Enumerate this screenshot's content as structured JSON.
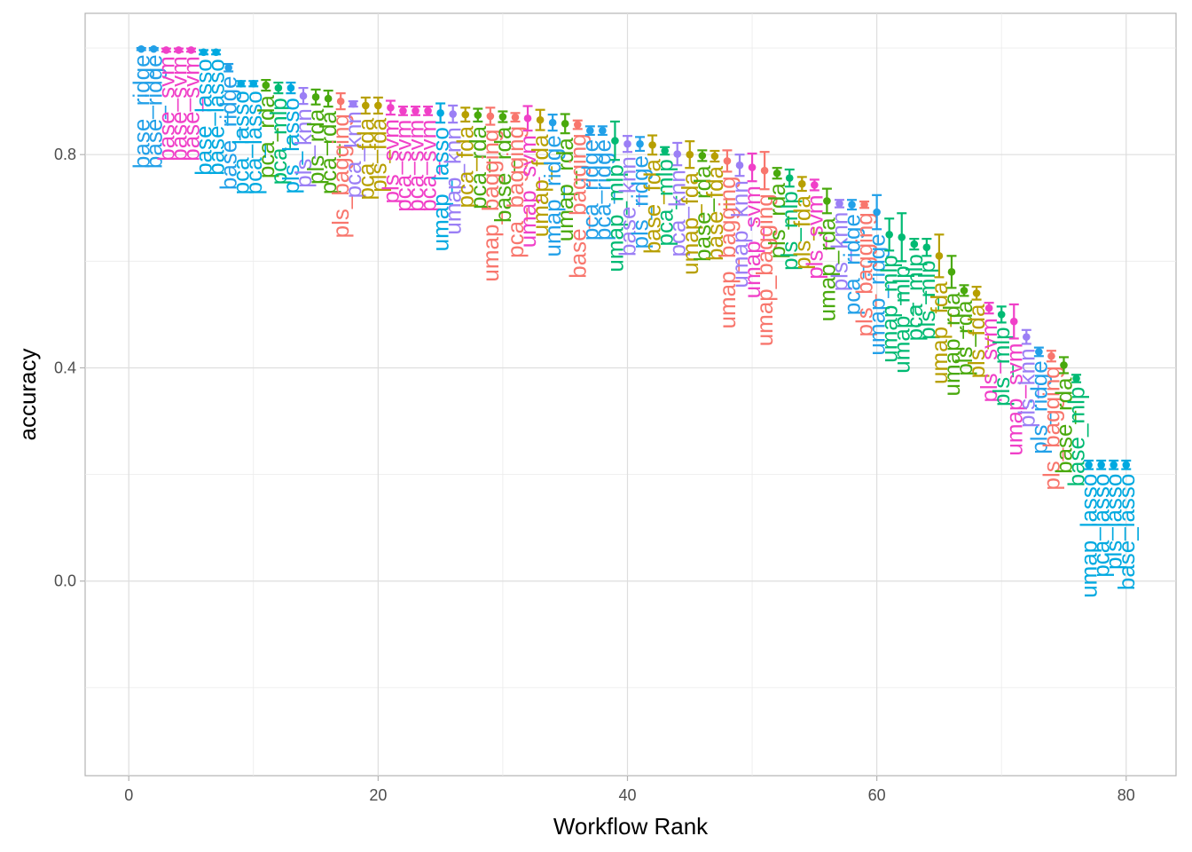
{
  "chart_data": {
    "type": "scatter",
    "xlabel": "Workflow Rank",
    "ylabel": "accuracy",
    "xlim": [
      -3.5,
      84
    ],
    "ylim": [
      -0.365,
      1.065
    ],
    "x_ticks": [
      0,
      20,
      40,
      60,
      80
    ],
    "x_tick_labels": [
      "0",
      "20",
      "40",
      "60",
      "80"
    ],
    "y_ticks": [
      0.0,
      0.4,
      0.8
    ],
    "y_tick_labels": [
      "0.0",
      "0.4",
      "0.8"
    ],
    "grid": true,
    "theme": "light",
    "legend": "none",
    "colors": {
      "bagging": "#F8766D",
      "fda": "#B79F00",
      "lasso": "#00A9E0",
      "knn": "#9B7FF5",
      "mlp": "#00BA73",
      "rda": "#49A90D",
      "ridge": "#22A0E8",
      "svm": "#F040C8"
    },
    "points": [
      {
        "rank": 1,
        "label": "base_ridge",
        "model": "ridge",
        "mean": 0.998,
        "lower": 0.996,
        "upper": 1.0
      },
      {
        "rank": 2,
        "label": "base_ridge",
        "model": "ridge",
        "mean": 0.998,
        "lower": 0.996,
        "upper": 1.0
      },
      {
        "rank": 3,
        "label": "base_svm",
        "model": "svm",
        "mean": 0.996,
        "lower": 0.993,
        "upper": 0.999
      },
      {
        "rank": 4,
        "label": "base_svm",
        "model": "svm",
        "mean": 0.996,
        "lower": 0.993,
        "upper": 0.999
      },
      {
        "rank": 5,
        "label": "base_svm",
        "model": "svm",
        "mean": 0.996,
        "lower": 0.993,
        "upper": 0.999
      },
      {
        "rank": 6,
        "label": "base_lasso",
        "model": "lasso",
        "mean": 0.992,
        "lower": 0.988,
        "upper": 0.996
      },
      {
        "rank": 7,
        "label": "base_lasso",
        "model": "lasso",
        "mean": 0.992,
        "lower": 0.988,
        "upper": 0.996
      },
      {
        "rank": 8,
        "label": "base_ridge",
        "model": "ridge",
        "mean": 0.963,
        "lower": 0.956,
        "upper": 0.97
      },
      {
        "rank": 9,
        "label": "pca_lasso",
        "model": "lasso",
        "mean": 0.933,
        "lower": 0.928,
        "upper": 0.938
      },
      {
        "rank": 10,
        "label": "pca_lasso",
        "model": "lasso",
        "mean": 0.933,
        "lower": 0.928,
        "upper": 0.938
      },
      {
        "rank": 11,
        "label": "pca_rda",
        "model": "rda",
        "mean": 0.93,
        "lower": 0.92,
        "upper": 0.94
      },
      {
        "rank": 12,
        "label": "pca_mlp",
        "model": "mlp",
        "mean": 0.925,
        "lower": 0.915,
        "upper": 0.935
      },
      {
        "rank": 13,
        "label": "pls_lasso",
        "model": "lasso",
        "mean": 0.925,
        "lower": 0.915,
        "upper": 0.935
      },
      {
        "rank": 14,
        "label": "pls_knn",
        "model": "knn",
        "mean": 0.91,
        "lower": 0.895,
        "upper": 0.925
      },
      {
        "rank": 15,
        "label": "pls_rda",
        "model": "rda",
        "mean": 0.908,
        "lower": 0.894,
        "upper": 0.922
      },
      {
        "rank": 16,
        "label": "pca_rda",
        "model": "rda",
        "mean": 0.905,
        "lower": 0.89,
        "upper": 0.92
      },
      {
        "rank": 17,
        "label": "pls_bagging",
        "model": "bagging",
        "mean": 0.9,
        "lower": 0.885,
        "upper": 0.915
      },
      {
        "rank": 18,
        "label": "pca_knn",
        "model": "knn",
        "mean": 0.895,
        "lower": 0.89,
        "upper": 0.9
      },
      {
        "rank": 19,
        "label": "pca_fda",
        "model": "fda",
        "mean": 0.892,
        "lower": 0.877,
        "upper": 0.907
      },
      {
        "rank": 20,
        "label": "pls_fda",
        "model": "fda",
        "mean": 0.892,
        "lower": 0.877,
        "upper": 0.907
      },
      {
        "rank": 21,
        "label": "pls_svm",
        "model": "svm",
        "mean": 0.888,
        "lower": 0.875,
        "upper": 0.901
      },
      {
        "rank": 22,
        "label": "pca_svm",
        "model": "svm",
        "mean": 0.882,
        "lower": 0.874,
        "upper": 0.89
      },
      {
        "rank": 23,
        "label": "pca_svm",
        "model": "svm",
        "mean": 0.882,
        "lower": 0.874,
        "upper": 0.89
      },
      {
        "rank": 24,
        "label": "pca_svm",
        "model": "svm",
        "mean": 0.882,
        "lower": 0.874,
        "upper": 0.89
      },
      {
        "rank": 25,
        "label": "umap_lasso",
        "model": "lasso",
        "mean": 0.878,
        "lower": 0.86,
        "upper": 0.896
      },
      {
        "rank": 26,
        "label": "umap_knn",
        "model": "knn",
        "mean": 0.876,
        "lower": 0.86,
        "upper": 0.892
      },
      {
        "rank": 27,
        "label": "pca_fda",
        "model": "fda",
        "mean": 0.875,
        "lower": 0.862,
        "upper": 0.888
      },
      {
        "rank": 28,
        "label": "pca_rda",
        "model": "rda",
        "mean": 0.874,
        "lower": 0.862,
        "upper": 0.886
      },
      {
        "rank": 29,
        "label": "umap_bagging",
        "model": "bagging",
        "mean": 0.872,
        "lower": 0.856,
        "upper": 0.888
      },
      {
        "rank": 30,
        "label": "base_rda",
        "model": "rda",
        "mean": 0.871,
        "lower": 0.861,
        "upper": 0.881
      },
      {
        "rank": 31,
        "label": "pca_bagging",
        "model": "bagging",
        "mean": 0.87,
        "lower": 0.862,
        "upper": 0.878
      },
      {
        "rank": 32,
        "label": "umap_svm",
        "model": "svm",
        "mean": 0.868,
        "lower": 0.845,
        "upper": 0.891
      },
      {
        "rank": 33,
        "label": "umap_fda",
        "model": "fda",
        "mean": 0.865,
        "lower": 0.846,
        "upper": 0.884
      },
      {
        "rank": 34,
        "label": "umap_ridge",
        "model": "ridge",
        "mean": 0.86,
        "lower": 0.845,
        "upper": 0.875
      },
      {
        "rank": 35,
        "label": "umap_rda",
        "model": "rda",
        "mean": 0.858,
        "lower": 0.84,
        "upper": 0.876
      },
      {
        "rank": 36,
        "label": "base_bagging",
        "model": "bagging",
        "mean": 0.856,
        "lower": 0.848,
        "upper": 0.864
      },
      {
        "rank": 37,
        "label": "pca_ridge",
        "model": "ridge",
        "mean": 0.845,
        "lower": 0.837,
        "upper": 0.853
      },
      {
        "rank": 38,
        "label": "pca_ridge",
        "model": "ridge",
        "mean": 0.845,
        "lower": 0.837,
        "upper": 0.853
      },
      {
        "rank": 39,
        "label": "umap_mlp",
        "model": "mlp",
        "mean": 0.826,
        "lower": 0.79,
        "upper": 0.862
      },
      {
        "rank": 40,
        "label": "base_knn",
        "model": "knn",
        "mean": 0.82,
        "lower": 0.805,
        "upper": 0.835
      },
      {
        "rank": 41,
        "label": "pls_ridge",
        "model": "ridge",
        "mean": 0.82,
        "lower": 0.807,
        "upper": 0.833
      },
      {
        "rank": 42,
        "label": "base_fda",
        "model": "fda",
        "mean": 0.818,
        "lower": 0.8,
        "upper": 0.836
      },
      {
        "rank": 43,
        "label": "pca_mlp",
        "model": "mlp",
        "mean": 0.807,
        "lower": 0.8,
        "upper": 0.814
      },
      {
        "rank": 44,
        "label": "pca_knn",
        "model": "knn",
        "mean": 0.801,
        "lower": 0.78,
        "upper": 0.822
      },
      {
        "rank": 45,
        "label": "umap_fda",
        "model": "fda",
        "mean": 0.8,
        "lower": 0.775,
        "upper": 0.825
      },
      {
        "rank": 46,
        "label": "base_rda",
        "model": "rda",
        "mean": 0.798,
        "lower": 0.788,
        "upper": 0.808
      },
      {
        "rank": 47,
        "label": "base_fda",
        "model": "fda",
        "mean": 0.797,
        "lower": 0.787,
        "upper": 0.807
      },
      {
        "rank": 48,
        "label": "umap_bagging",
        "model": "bagging",
        "mean": 0.788,
        "lower": 0.768,
        "upper": 0.808
      },
      {
        "rank": 49,
        "label": "umap_knn",
        "model": "knn",
        "mean": 0.78,
        "lower": 0.76,
        "upper": 0.8
      },
      {
        "rank": 50,
        "label": "umap_svm",
        "model": "svm",
        "mean": 0.776,
        "lower": 0.75,
        "upper": 0.802
      },
      {
        "rank": 51,
        "label": "umap_bagging",
        "model": "bagging",
        "mean": 0.77,
        "lower": 0.735,
        "upper": 0.805
      },
      {
        "rank": 52,
        "label": "pls_rda",
        "model": "rda",
        "mean": 0.765,
        "lower": 0.755,
        "upper": 0.775
      },
      {
        "rank": 53,
        "label": "pls_mlp",
        "model": "mlp",
        "mean": 0.756,
        "lower": 0.74,
        "upper": 0.772
      },
      {
        "rank": 54,
        "label": "pls_fda",
        "model": "fda",
        "mean": 0.745,
        "lower": 0.732,
        "upper": 0.758
      },
      {
        "rank": 55,
        "label": "pls_svm",
        "model": "svm",
        "mean": 0.743,
        "lower": 0.733,
        "upper": 0.753
      },
      {
        "rank": 56,
        "label": "umap_rda",
        "model": "rda",
        "mean": 0.713,
        "lower": 0.69,
        "upper": 0.736
      },
      {
        "rank": 57,
        "label": "pls_knn",
        "model": "knn",
        "mean": 0.708,
        "lower": 0.701,
        "upper": 0.715
      },
      {
        "rank": 58,
        "label": "pca_ridge",
        "model": "ridge",
        "mean": 0.706,
        "lower": 0.697,
        "upper": 0.715
      },
      {
        "rank": 59,
        "label": "pls_bagging",
        "model": "bagging",
        "mean": 0.706,
        "lower": 0.7,
        "upper": 0.712
      },
      {
        "rank": 60,
        "label": "umap_ridge",
        "model": "ridge",
        "mean": 0.692,
        "lower": 0.66,
        "upper": 0.724
      },
      {
        "rank": 61,
        "label": "umap_mlp",
        "model": "mlp",
        "mean": 0.65,
        "lower": 0.62,
        "upper": 0.68
      },
      {
        "rank": 62,
        "label": "umap_mlp",
        "model": "mlp",
        "mean": 0.645,
        "lower": 0.6,
        "upper": 0.69
      },
      {
        "rank": 63,
        "label": "pca_mlp",
        "model": "mlp",
        "mean": 0.632,
        "lower": 0.622,
        "upper": 0.642
      },
      {
        "rank": 64,
        "label": "pls_mlp",
        "model": "mlp",
        "mean": 0.626,
        "lower": 0.61,
        "upper": 0.642
      },
      {
        "rank": 65,
        "label": "umap_fda",
        "model": "fda",
        "mean": 0.61,
        "lower": 0.57,
        "upper": 0.65
      },
      {
        "rank": 66,
        "label": "umap_rda",
        "model": "rda",
        "mean": 0.58,
        "lower": 0.55,
        "upper": 0.61
      },
      {
        "rank": 67,
        "label": "pls_rda",
        "model": "rda",
        "mean": 0.545,
        "lower": 0.535,
        "upper": 0.555
      },
      {
        "rank": 68,
        "label": "pls_fda",
        "model": "fda",
        "mean": 0.54,
        "lower": 0.528,
        "upper": 0.552
      },
      {
        "rank": 69,
        "label": "pls_svm",
        "model": "svm",
        "mean": 0.512,
        "lower": 0.502,
        "upper": 0.522
      },
      {
        "rank": 70,
        "label": "pls_mlp",
        "model": "mlp",
        "mean": 0.5,
        "lower": 0.485,
        "upper": 0.515
      },
      {
        "rank": 71,
        "label": "umap_svm",
        "model": "svm",
        "mean": 0.487,
        "lower": 0.455,
        "upper": 0.519
      },
      {
        "rank": 72,
        "label": "pls_knn",
        "model": "knn",
        "mean": 0.458,
        "lower": 0.445,
        "upper": 0.471
      },
      {
        "rank": 73,
        "label": "pls_ridge",
        "model": "ridge",
        "mean": 0.43,
        "lower": 0.422,
        "upper": 0.438
      },
      {
        "rank": 74,
        "label": "pls_bagging",
        "model": "bagging",
        "mean": 0.422,
        "lower": 0.412,
        "upper": 0.432
      },
      {
        "rank": 75,
        "label": "base_rda",
        "model": "rda",
        "mean": 0.405,
        "lower": 0.39,
        "upper": 0.42
      },
      {
        "rank": 76,
        "label": "base_mlp",
        "model": "mlp",
        "mean": 0.38,
        "lower": 0.373,
        "upper": 0.387
      },
      {
        "rank": 77,
        "label": "umap_lasso",
        "model": "lasso",
        "mean": 0.218,
        "lower": 0.21,
        "upper": 0.226
      },
      {
        "rank": 78,
        "label": "pca_lasso",
        "model": "lasso",
        "mean": 0.218,
        "lower": 0.21,
        "upper": 0.226
      },
      {
        "rank": 79,
        "label": "pls_lasso",
        "model": "lasso",
        "mean": 0.218,
        "lower": 0.21,
        "upper": 0.226
      },
      {
        "rank": 80,
        "label": "base_lasso",
        "model": "lasso",
        "mean": 0.218,
        "lower": 0.21,
        "upper": 0.226
      }
    ]
  }
}
